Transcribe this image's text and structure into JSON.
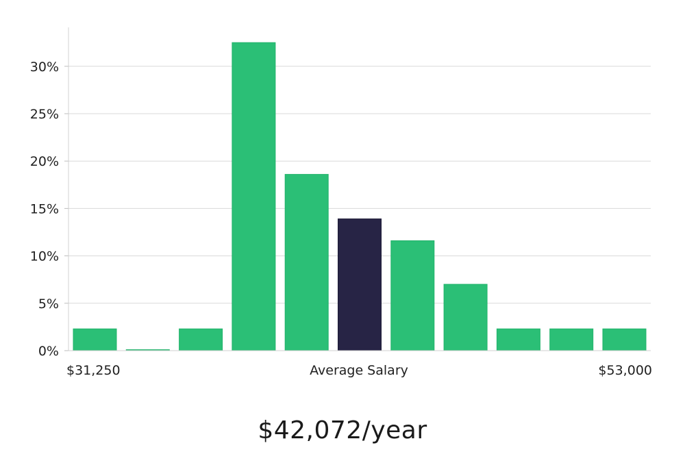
{
  "chart_data": {
    "type": "bar",
    "title": "",
    "xlabel": "",
    "ylabel": "",
    "ylim": [
      0,
      34
    ],
    "y_ticks": [
      0,
      5,
      10,
      15,
      20,
      25,
      30
    ],
    "y_tick_suffix": "%",
    "values": [
      2.3,
      0.1,
      2.3,
      32.5,
      18.6,
      13.9,
      11.6,
      7.0,
      2.3,
      2.3,
      2.3
    ],
    "highlight_index": 5,
    "bar_color": "#2bbf76",
    "highlight_color": "#272445",
    "grid_color": "#d9d9d9",
    "x_labels": {
      "left": "$31,250",
      "center": "Average Salary",
      "right": "$53,000"
    }
  },
  "summary": {
    "salary": "$42,072/year"
  }
}
